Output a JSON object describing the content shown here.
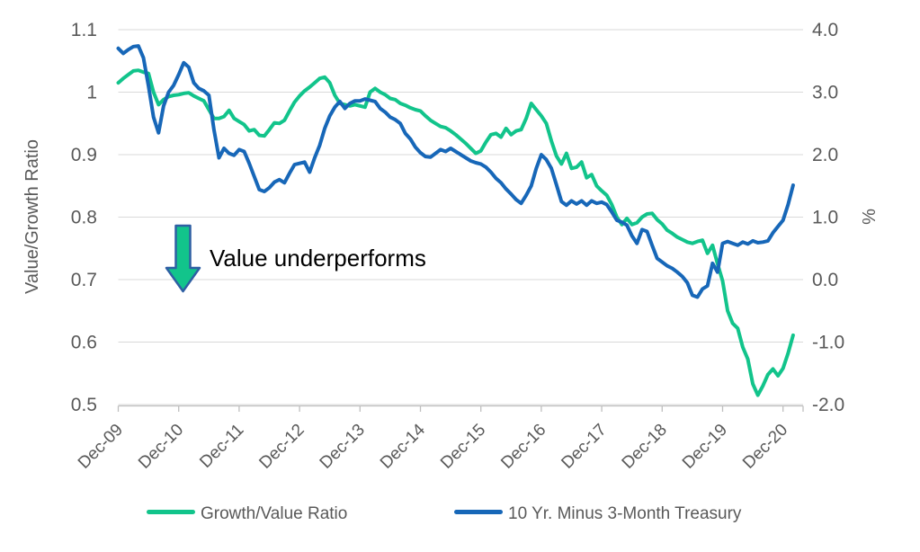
{
  "annotation": {
    "text": "Value underperforms",
    "text_color": "#000000",
    "arrow_fill": "#12C48B",
    "arrow_border": "#2E5FA3"
  },
  "y_left": {
    "title": "Value/Growth Ratio",
    "tick_labels": [
      "1.1",
      "1",
      "0.9",
      "0.8",
      "0.7",
      "0.6",
      "0.5"
    ],
    "tick_values": [
      1.1,
      1.0,
      0.9,
      0.8,
      0.7,
      0.6,
      0.5
    ],
    "range": [
      0.5,
      1.1
    ]
  },
  "y_right": {
    "title": "%",
    "tick_labels": [
      "4.0",
      "3.0",
      "2.0",
      "1.0",
      "0.0",
      "-1.0",
      "-2.0"
    ],
    "tick_values": [
      4.0,
      3.0,
      2.0,
      1.0,
      0.0,
      -1.0,
      -2.0
    ],
    "range": [
      -2.0,
      4.0
    ]
  },
  "x_axis": {
    "tick_labels": [
      "Dec-09",
      "Dec-10",
      "Dec-11",
      "Dec-12",
      "Dec-13",
      "Dec-14",
      "Dec-15",
      "Dec-16",
      "Dec-17",
      "Dec-18",
      "Dec-19",
      "Dec-20"
    ],
    "ticks_every_months": 12
  },
  "style_colors": {
    "axis_text": "#595959",
    "gridline": "#D9D9D9",
    "axis_line": "#BFBFBF"
  },
  "chart_data": {
    "type": "line",
    "x_unit": "months since Dec-2009 (monthly data, Dec-09 through Feb-21)",
    "grid": "horizontal only",
    "legend_position": "bottom",
    "x_tick_labels": [
      "Dec-09",
      "Dec-10",
      "Dec-11",
      "Dec-12",
      "Dec-13",
      "Dec-14",
      "Dec-15",
      "Dec-16",
      "Dec-17",
      "Dec-18",
      "Dec-19",
      "Dec-20"
    ],
    "y_left_label": "Value/Growth Ratio",
    "y_left_range": [
      0.5,
      1.1
    ],
    "y_right_label": "%",
    "y_right_range": [
      -2.0,
      4.0
    ],
    "series": [
      {
        "name": "Growth/Value Ratio",
        "axis": "left",
        "color": "#12C48B",
        "values": [
          1.015,
          1.022,
          1.028,
          1.034,
          1.035,
          1.032,
          1.03,
          1.0,
          0.98,
          0.988,
          0.993,
          0.995,
          0.996,
          0.998,
          0.999,
          0.994,
          0.99,
          0.986,
          0.972,
          0.958,
          0.958,
          0.961,
          0.971,
          0.958,
          0.953,
          0.948,
          0.938,
          0.94,
          0.931,
          0.93,
          0.94,
          0.951,
          0.95,
          0.955,
          0.97,
          0.984,
          0.994,
          1.002,
          1.008,
          1.015,
          1.022,
          1.024,
          1.015,
          0.995,
          0.982,
          0.98,
          0.978,
          0.98,
          0.978,
          0.976,
          1.0,
          1.006,
          1.0,
          0.996,
          0.99,
          0.988,
          0.982,
          0.979,
          0.975,
          0.972,
          0.97,
          0.962,
          0.955,
          0.95,
          0.945,
          0.943,
          0.938,
          0.932,
          0.925,
          0.918,
          0.91,
          0.902,
          0.906,
          0.92,
          0.932,
          0.934,
          0.928,
          0.942,
          0.932,
          0.938,
          0.94,
          0.958,
          0.982,
          0.972,
          0.962,
          0.95,
          0.922,
          0.898,
          0.885,
          0.902,
          0.878,
          0.88,
          0.888,
          0.863,
          0.868,
          0.85,
          0.842,
          0.835,
          0.82,
          0.8,
          0.788,
          0.798,
          0.788,
          0.791,
          0.8,
          0.805,
          0.806,
          0.796,
          0.789,
          0.779,
          0.774,
          0.768,
          0.764,
          0.76,
          0.758,
          0.761,
          0.763,
          0.742,
          0.755,
          0.725,
          0.698,
          0.65,
          0.63,
          0.622,
          0.592,
          0.573,
          0.533,
          0.515,
          0.53,
          0.548,
          0.557,
          0.546,
          0.558,
          0.582,
          0.611
        ]
      },
      {
        "name": "10 Yr. Minus 3-Month Treasury",
        "axis": "right",
        "color": "#1767B8",
        "values": [
          3.7,
          3.62,
          3.68,
          3.73,
          3.74,
          3.55,
          3.1,
          2.6,
          2.35,
          2.78,
          3.0,
          3.11,
          3.28,
          3.47,
          3.4,
          3.15,
          3.06,
          3.02,
          2.95,
          2.4,
          1.95,
          2.1,
          2.02,
          1.99,
          2.08,
          2.05,
          1.86,
          1.65,
          1.44,
          1.41,
          1.47,
          1.56,
          1.6,
          1.55,
          1.7,
          1.84,
          1.86,
          1.88,
          1.72,
          1.95,
          2.15,
          2.42,
          2.62,
          2.76,
          2.85,
          2.74,
          2.82,
          2.86,
          2.86,
          2.89,
          2.87,
          2.85,
          2.74,
          2.68,
          2.6,
          2.56,
          2.5,
          2.34,
          2.25,
          2.12,
          2.03,
          1.97,
          1.96,
          2.02,
          2.08,
          2.05,
          2.1,
          2.05,
          2.0,
          1.95,
          1.9,
          1.87,
          1.85,
          1.8,
          1.72,
          1.62,
          1.55,
          1.45,
          1.37,
          1.28,
          1.22,
          1.35,
          1.5,
          1.78,
          2.0,
          1.92,
          1.78,
          1.52,
          1.25,
          1.19,
          1.26,
          1.21,
          1.26,
          1.19,
          1.26,
          1.22,
          1.24,
          1.2,
          1.08,
          0.95,
          0.92,
          0.87,
          0.7,
          0.58,
          0.8,
          0.77,
          0.55,
          0.34,
          0.28,
          0.22,
          0.18,
          0.12,
          0.05,
          -0.05,
          -0.25,
          -0.28,
          -0.15,
          -0.1,
          0.26,
          0.12,
          0.58,
          0.61,
          0.58,
          0.55,
          0.6,
          0.57,
          0.62,
          0.59,
          0.6,
          0.62,
          0.75,
          0.85,
          0.95,
          1.2,
          1.51
        ]
      }
    ]
  }
}
